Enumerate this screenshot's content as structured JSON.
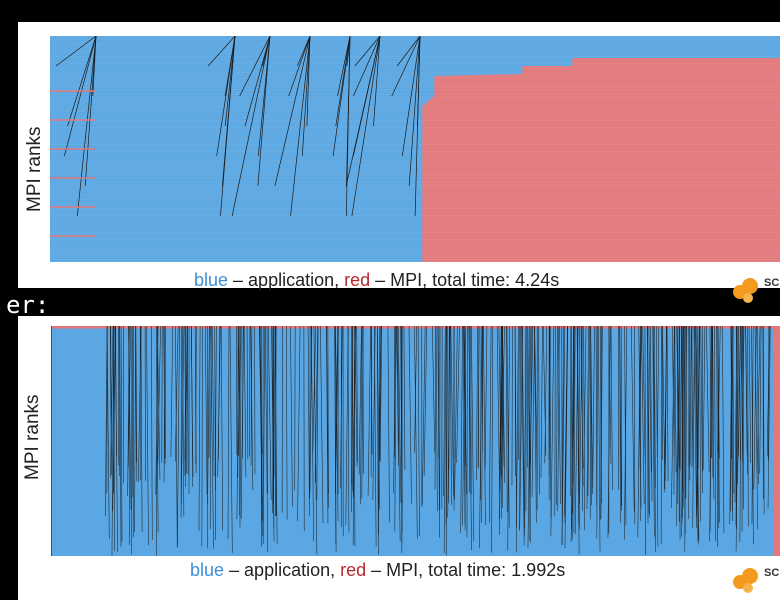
{
  "between_text": "er:",
  "colors": {
    "application": "#5aa7e3",
    "mpi": "#e2787b",
    "label_blue": "#3d8fd6",
    "label_red": "#b7282e",
    "edge": "#1a1a1a"
  },
  "chart_data": [
    {
      "type": "timeline",
      "ylabel": "MPI ranks",
      "caption": {
        "blue": "blue",
        "sep1": " – application, ",
        "red": "red",
        "rest": " – MPI, total time: 4.24s"
      },
      "total_time_s": 4.24,
      "series": [
        {
          "name": "application",
          "color": "#5aa7e3"
        },
        {
          "name": "MPI",
          "color": "#e2787b"
        }
      ],
      "mpi_region_start_fraction": 0.51
    },
    {
      "type": "timeline",
      "ylabel": "MPI ranks",
      "caption": {
        "blue": "blue",
        "sep1": " – application, ",
        "red": "red",
        "rest": " – MPI, total time: 1.992s"
      },
      "total_time_s": 1.992,
      "series": [
        {
          "name": "application",
          "color": "#5aa7e3"
        },
        {
          "name": "MPI",
          "color": "#e2787b"
        }
      ]
    }
  ],
  "logo": {
    "text": "SC"
  }
}
